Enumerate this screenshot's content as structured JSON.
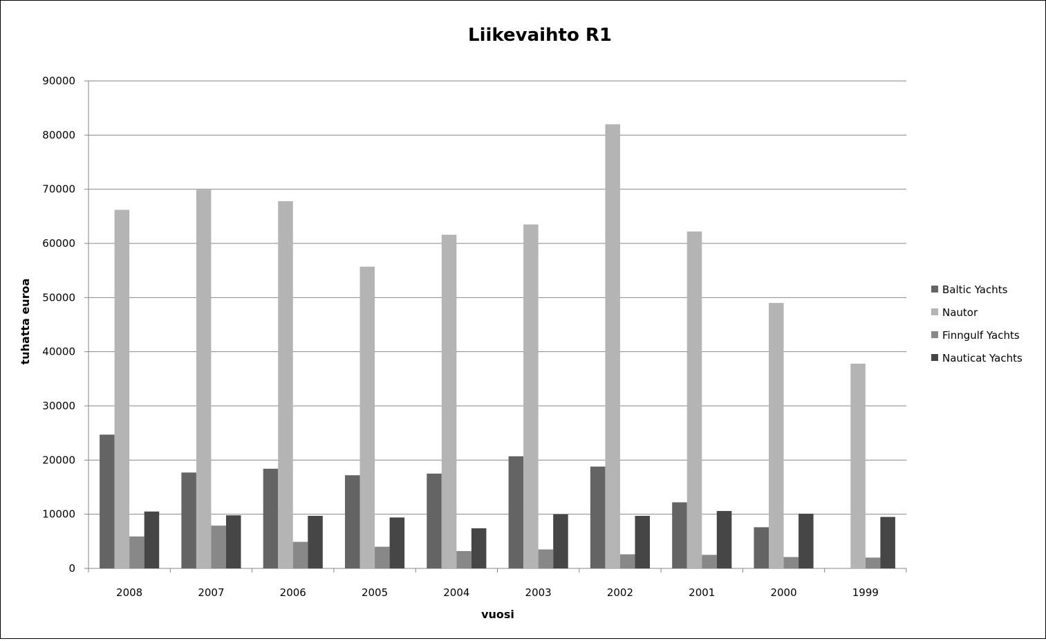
{
  "chart_data": {
    "type": "bar",
    "title": "Liikevaihto R1",
    "xlabel": "vuosi",
    "ylabel": "tuhatta euroa",
    "ylim": [
      0,
      90000
    ],
    "yticks": [
      0,
      10000,
      20000,
      30000,
      40000,
      50000,
      60000,
      70000,
      80000,
      90000
    ],
    "grid": true,
    "legend_position": "right",
    "categories": [
      "2008",
      "2007",
      "2006",
      "2005",
      "2004",
      "2003",
      "2002",
      "2001",
      "2000",
      "1999"
    ],
    "series": [
      {
        "name": "Baltic Yachts",
        "color": "#646464",
        "values": [
          24700,
          17700,
          18400,
          17200,
          17500,
          20700,
          18800,
          12200,
          7600,
          0
        ]
      },
      {
        "name": "Nautor",
        "color": "#b4b4b4",
        "values": [
          66200,
          69900,
          67800,
          55700,
          61600,
          63500,
          82000,
          62200,
          49000,
          37800
        ]
      },
      {
        "name": "Finngulf Yachts",
        "color": "#888888",
        "values": [
          5900,
          7900,
          4900,
          4000,
          3200,
          3500,
          2600,
          2500,
          2100,
          2000
        ]
      },
      {
        "name": "Nauticat Yachts",
        "color": "#464646",
        "values": [
          10500,
          9800,
          9700,
          9400,
          7400,
          10000,
          9700,
          10600,
          10100,
          9500
        ]
      }
    ]
  }
}
